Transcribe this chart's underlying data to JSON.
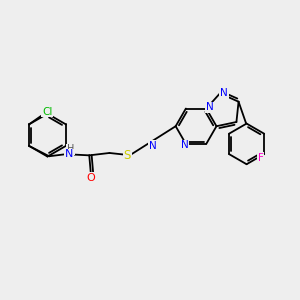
{
  "background_color": "#eeeeee",
  "bond_color": "#000000",
  "atom_colors": {
    "N": "#0000ff",
    "O": "#ff0000",
    "S": "#cccc00",
    "Cl": "#00bb00",
    "F": "#ff00cc",
    "C": "#000000"
  },
  "font_size": 7.5,
  "lw": 1.3,
  "figsize": [
    3.0,
    3.0
  ],
  "dpi": 100
}
